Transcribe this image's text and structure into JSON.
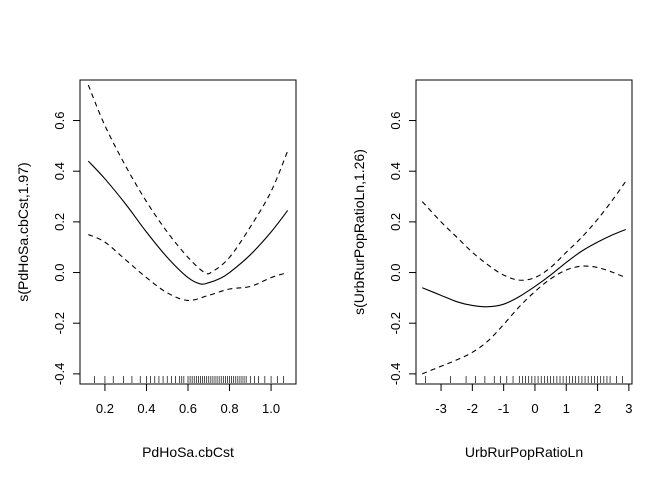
{
  "chart_data": [
    {
      "type": "line",
      "xlabel": "PdHoSa.cbCst",
      "ylabel": "s(PdHoSa.cbCst,1.97)",
      "xlim": [
        0.08,
        1.12
      ],
      "ylim": [
        -0.44,
        0.76
      ],
      "xticks": [
        0.2,
        0.4,
        0.6,
        0.8,
        1.0
      ],
      "xtick_labels": [
        "0.2",
        "0.4",
        "0.6",
        "0.8",
        "1.0"
      ],
      "yticks": [
        -0.4,
        -0.2,
        0.0,
        0.2,
        0.4,
        0.6
      ],
      "ytick_labels": [
        "-0.4",
        "-0.2",
        "0.0",
        "0.2",
        "0.4",
        "0.6"
      ],
      "series": [
        {
          "style": "solid",
          "x": [
            0.12,
            0.2,
            0.3,
            0.4,
            0.5,
            0.6,
            0.66,
            0.7,
            0.75,
            0.8,
            0.9,
            1.0,
            1.08
          ],
          "y": [
            0.44,
            0.37,
            0.27,
            0.16,
            0.06,
            -0.02,
            -0.045,
            -0.04,
            -0.025,
            0.0,
            0.07,
            0.16,
            0.245
          ]
        },
        {
          "style": "dashed",
          "x": [
            0.12,
            0.2,
            0.3,
            0.4,
            0.5,
            0.6,
            0.68,
            0.72,
            0.8,
            0.9,
            1.0,
            1.08
          ],
          "y": [
            0.74,
            0.58,
            0.42,
            0.28,
            0.16,
            0.06,
            0.0,
            0.005,
            0.06,
            0.18,
            0.32,
            0.48
          ]
        },
        {
          "style": "dashed",
          "x": [
            0.12,
            0.2,
            0.3,
            0.4,
            0.5,
            0.6,
            0.7,
            0.8,
            0.9,
            1.0,
            1.08
          ],
          "y": [
            0.15,
            0.12,
            0.05,
            -0.02,
            -0.08,
            -0.11,
            -0.09,
            -0.065,
            -0.055,
            -0.02,
            0.0
          ]
        }
      ],
      "rug": [
        0.15,
        0.2,
        0.24,
        0.29,
        0.33,
        0.37,
        0.4,
        0.42,
        0.44,
        0.46,
        0.48,
        0.5,
        0.52,
        0.54,
        0.56,
        0.57,
        0.58,
        0.6,
        0.61,
        0.62,
        0.63,
        0.64,
        0.65,
        0.66,
        0.67,
        0.68,
        0.69,
        0.7,
        0.71,
        0.72,
        0.73,
        0.74,
        0.75,
        0.76,
        0.77,
        0.78,
        0.79,
        0.8,
        0.81,
        0.82,
        0.83,
        0.84,
        0.85,
        0.86,
        0.87,
        0.88,
        0.9,
        0.92,
        0.94,
        0.97,
        1.0,
        1.03,
        1.06
      ]
    },
    {
      "type": "line",
      "xlabel": "UrbRurPopRatioLn",
      "ylabel": "s(UrbRurPopRatioLn,1.26)",
      "xlim": [
        -3.8,
        3.1
      ],
      "ylim": [
        -0.44,
        0.76
      ],
      "xticks": [
        -3,
        -2,
        -1,
        0,
        1,
        2,
        3
      ],
      "xtick_labels": [
        "-3",
        "-2",
        "-1",
        "0",
        "1",
        "2",
        "3"
      ],
      "yticks": [
        -0.4,
        -0.2,
        0.0,
        0.2,
        0.4,
        0.6
      ],
      "ytick_labels": [
        "-0.4",
        "-0.2",
        "0.0",
        "0.2",
        "0.4",
        "0.6"
      ],
      "series": [
        {
          "style": "solid",
          "x": [
            -3.6,
            -3.0,
            -2.5,
            -2.0,
            -1.5,
            -1.0,
            -0.5,
            0.0,
            0.5,
            1.0,
            1.5,
            2.0,
            2.5,
            2.9
          ],
          "y": [
            -0.06,
            -0.09,
            -0.115,
            -0.13,
            -0.135,
            -0.125,
            -0.095,
            -0.055,
            -0.01,
            0.04,
            0.085,
            0.12,
            0.15,
            0.17
          ]
        },
        {
          "style": "dashed",
          "x": [
            -3.6,
            -3.0,
            -2.5,
            -2.0,
            -1.5,
            -1.0,
            -0.5,
            0.0,
            0.5,
            1.0,
            1.5,
            2.0,
            2.5,
            2.9
          ],
          "y": [
            0.28,
            0.2,
            0.14,
            0.08,
            0.03,
            -0.01,
            -0.03,
            -0.02,
            0.02,
            0.08,
            0.14,
            0.21,
            0.29,
            0.36
          ]
        },
        {
          "style": "dashed",
          "x": [
            -3.6,
            -3.0,
            -2.5,
            -2.0,
            -1.5,
            -1.0,
            -0.5,
            0.0,
            0.5,
            1.0,
            1.5,
            2.0,
            2.5,
            2.9
          ],
          "y": [
            -0.4,
            -0.37,
            -0.345,
            -0.315,
            -0.27,
            -0.205,
            -0.135,
            -0.075,
            -0.025,
            0.01,
            0.025,
            0.02,
            0.0,
            -0.02
          ]
        }
      ],
      "rug": [
        -3.5,
        -2.7,
        -2.2,
        -1.9,
        -1.6,
        -1.3,
        -1.1,
        -0.9,
        -0.7,
        -0.5,
        -0.4,
        -0.3,
        -0.2,
        -0.1,
        0.0,
        0.1,
        0.2,
        0.3,
        0.4,
        0.5,
        0.6,
        0.7,
        0.8,
        0.9,
        1.0,
        1.1,
        1.2,
        1.3,
        1.4,
        1.5,
        1.6,
        1.7,
        1.8,
        1.9,
        2.0,
        2.1,
        2.2,
        2.3,
        2.4,
        2.6,
        2.8
      ]
    }
  ]
}
